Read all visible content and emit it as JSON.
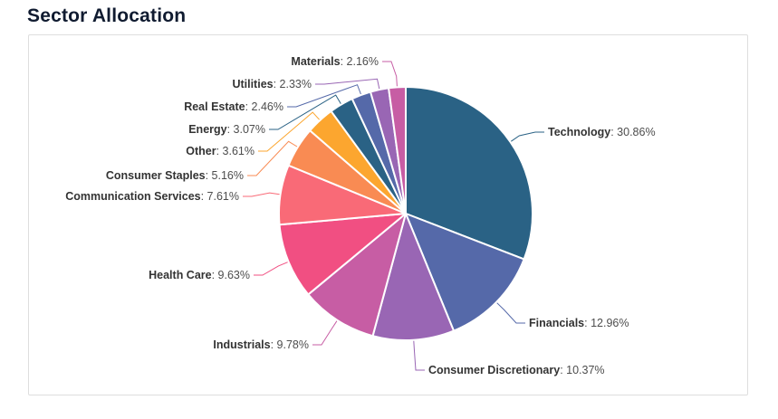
{
  "page_title": "Sector Allocation",
  "chart_data": {
    "type": "pie",
    "title": "Sector Allocation",
    "unit": "%",
    "legend_position": "none",
    "label_format": "{label}: {value}%",
    "start_angle_deg": 0,
    "direction": "clockwise",
    "slices": [
      {
        "label": "Technology",
        "value": 30.86,
        "color": "#2a6285"
      },
      {
        "label": "Financials",
        "value": 12.96,
        "color": "#5569a9"
      },
      {
        "label": "Consumer Discretionary",
        "value": 10.37,
        "color": "#9966b4"
      },
      {
        "label": "Industrials",
        "value": 9.78,
        "color": "#c75da4"
      },
      {
        "label": "Health Care",
        "value": 9.63,
        "color": "#f14f82"
      },
      {
        "label": "Communication Services",
        "value": 7.61,
        "color": "#f96a77"
      },
      {
        "label": "Consumer Staples",
        "value": 5.16,
        "color": "#f98b53"
      },
      {
        "label": "Other",
        "value": 3.61,
        "color": "#fca62f"
      },
      {
        "label": "Energy",
        "value": 3.07,
        "color": "#2a6285"
      },
      {
        "label": "Real Estate",
        "value": 2.46,
        "color": "#5569a9"
      },
      {
        "label": "Utilities",
        "value": 2.33,
        "color": "#9966b4"
      },
      {
        "label": "Materials",
        "value": 2.16,
        "color": "#c75da4"
      }
    ]
  }
}
